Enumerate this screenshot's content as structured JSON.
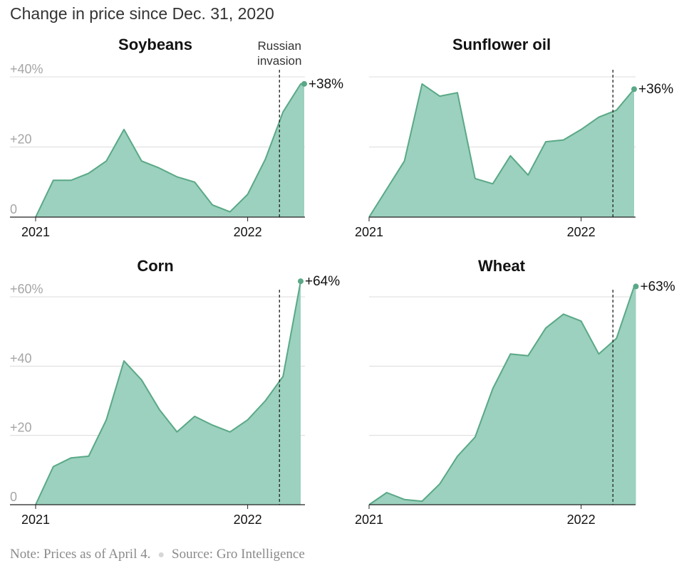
{
  "title": "Change in price since Dec. 31, 2020",
  "footer": {
    "note": "Note: Prices as of April 4.",
    "source": "Source: Gro Intelligence"
  },
  "colors": {
    "fill": "#9bd1be",
    "line": "#5aa887",
    "grid": "#dcdcdc",
    "axis": "#222222"
  },
  "annotation": {
    "line1": "Russian",
    "line2": "invasion"
  },
  "chart_data": [
    {
      "type": "area",
      "title": "Soybeans",
      "ylim": [
        0,
        40
      ],
      "yticks": [
        0,
        20,
        40
      ],
      "ytick_labels": [
        "0",
        "+20",
        "+40%"
      ],
      "xticks": [
        "2021",
        "2022"
      ],
      "invasion_month": 13.8,
      "end_label": "+38%",
      "x_months": [
        0,
        1,
        2,
        3,
        4,
        5,
        6,
        7,
        8,
        9,
        10,
        11,
        12,
        13,
        14,
        15,
        15.2
      ],
      "values": [
        0,
        10.5,
        10.5,
        12.5,
        16,
        25,
        16,
        14,
        11.5,
        10,
        3.5,
        1.5,
        6.5,
        16.5,
        30,
        38,
        38
      ]
    },
    {
      "type": "area",
      "title": "Sunflower oil",
      "ylim": [
        0,
        40
      ],
      "yticks": [
        0,
        20,
        40
      ],
      "ytick_labels": [
        "",
        "",
        ""
      ],
      "xticks": [
        "2021",
        "2022"
      ],
      "invasion_month": 13.8,
      "end_label": "+36%",
      "x_months": [
        0,
        1,
        2,
        3,
        4,
        5,
        6,
        7,
        8,
        9,
        10,
        11,
        12,
        13,
        14,
        15
      ],
      "values": [
        0,
        8,
        16,
        38,
        34.5,
        35.5,
        11,
        9.5,
        17.5,
        12,
        21.5,
        22,
        25,
        28.5,
        30.5,
        36.5
      ]
    },
    {
      "type": "area",
      "title": "Corn",
      "ylim": [
        0,
        60
      ],
      "yticks": [
        0,
        20,
        40,
        60
      ],
      "ytick_labels": [
        "0",
        "+20",
        "+40",
        "+60%"
      ],
      "xticks": [
        "2021",
        "2022"
      ],
      "invasion_month": 13.8,
      "end_label": "+64%",
      "x_months": [
        0,
        1,
        2,
        3,
        4,
        5,
        6,
        7,
        8,
        9,
        10,
        11,
        12,
        13,
        14,
        15
      ],
      "values": [
        0,
        11,
        13.5,
        14,
        24.5,
        41.5,
        36,
        27.5,
        21,
        25.5,
        23,
        21,
        24.5,
        30,
        37,
        64.5
      ]
    },
    {
      "type": "area",
      "title": "Wheat",
      "ylim": [
        0,
        60
      ],
      "yticks": [
        0,
        20,
        40,
        60
      ],
      "ytick_labels": [
        "",
        "",
        "",
        ""
      ],
      "xticks": [
        "2021",
        "2022"
      ],
      "invasion_month": 13.8,
      "end_label": "+63%",
      "x_months": [
        0,
        1,
        2,
        3,
        4,
        5,
        6,
        7,
        8,
        9,
        10,
        11,
        12,
        13,
        14,
        15,
        15.1
      ],
      "values": [
        0,
        3.5,
        1.5,
        1,
        6,
        14,
        19.5,
        33.5,
        43.5,
        43,
        51,
        55,
        53,
        43.5,
        48,
        63,
        63
      ]
    }
  ]
}
